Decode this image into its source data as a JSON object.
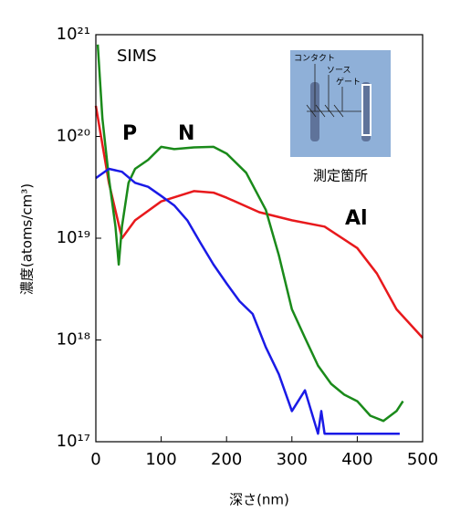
{
  "chart_data": {
    "type": "line",
    "annotation": "SIMS",
    "inset": {
      "labels": [
        "コンタクト",
        "ソース",
        "ゲート"
      ],
      "caption": "測定箇所"
    },
    "x_label": "深さ(nm)",
    "y_label": "濃度(atoms/cm³)",
    "xlim": [
      0,
      500
    ],
    "xticks": [
      0,
      100,
      200,
      300,
      400,
      500
    ],
    "ylim": [
      1e+17,
      1e+21
    ],
    "log_y": true,
    "yticks": [
      {
        "value": 1e+17,
        "label": "10¹⁷"
      },
      {
        "value": 1e+18,
        "label": "10¹⁸"
      },
      {
        "value": 1e+19,
        "label": "10¹⁹"
      },
      {
        "value": 1e+20,
        "label": "10²⁰"
      },
      {
        "value": 1e+21,
        "label": "10²¹"
      }
    ],
    "series": [
      {
        "name": "Al",
        "color": "#e8191c",
        "x": [
          0,
          20,
          40,
          60,
          100,
          150,
          180,
          200,
          250,
          300,
          350,
          400,
          430,
          460,
          500
        ],
        "values": [
          2e+20,
          3.5e+19,
          1e+19,
          1.5e+19,
          2.3e+19,
          2.9e+19,
          2.8e+19,
          2.5e+19,
          1.8e+19,
          1.5e+19,
          1.3e+19,
          8e+18,
          4.5e+18,
          2e+18,
          1.05e+18
        ]
      },
      {
        "name": "N",
        "color": "#1a8a1a",
        "x": [
          3,
          10,
          20,
          30,
          35,
          40,
          50,
          60,
          80,
          100,
          120,
          150,
          180,
          200,
          230,
          260,
          280,
          300,
          320,
          340,
          360,
          380,
          400,
          420,
          440,
          460,
          470
        ],
        "values": [
          8e+20,
          1.5e+20,
          3.9e+19,
          1.3e+19,
          5.5e+18,
          1.3e+19,
          3.5e+19,
          4.8e+19,
          5.9e+19,
          7.9e+19,
          7.5e+19,
          7.8e+19,
          7.9e+19,
          6.8e+19,
          4.4e+19,
          1.9e+19,
          6.8e+18,
          2e+18,
          1.05e+18,
          5.6e+17,
          3.7e+17,
          2.9e+17,
          2.5e+17,
          1.8e+17,
          1.6e+17,
          2e+17,
          2.5e+17
        ]
      },
      {
        "name": "P",
        "color": "#1a1ae6",
        "x": [
          0,
          20,
          40,
          60,
          80,
          100,
          120,
          140,
          160,
          180,
          200,
          220,
          240,
          260,
          280,
          300,
          320,
          340,
          345,
          350,
          400,
          465
        ],
        "values": [
          3.9e+19,
          4.8e+19,
          4.5e+19,
          3.5e+19,
          3.2e+19,
          2.6e+19,
          2.1e+19,
          1.5e+19,
          9e+18,
          5.5e+18,
          3.6e+18,
          2.4e+18,
          1.8e+18,
          8.5e+17,
          4.6e+17,
          2e+17,
          3.2e+17,
          1.2e+17,
          2e+17,
          1.2e+17,
          1.2e+17,
          1.2e+17
        ]
      }
    ]
  }
}
